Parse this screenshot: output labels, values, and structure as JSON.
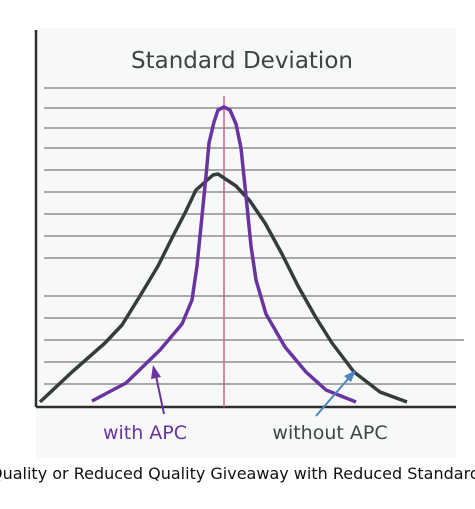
{
  "diagram": {
    "title": "Standard Deviation",
    "label_with": "with APC",
    "label_without": "without APC",
    "caption": "Quality or Reduced Quality Giveaway with Reduced Standard Deviation"
  },
  "colors": {
    "axis": "#2e2e2e",
    "gridline": "#a9a9a9",
    "curve_without": "#333d3d",
    "curve_with": "#6a34a0",
    "mean_line": "#d9608a",
    "label_with": "#6a34a0",
    "label_without": "#3c4848",
    "arrow_with": "#6a34a0",
    "arrow_without": "#4e86c1",
    "panel_bg": "#f7f8f8",
    "title": "#3a4444"
  },
  "curves": [
    {
      "name": "without APC",
      "shape": "wide"
    },
    {
      "name": "with APC",
      "shape": "narrow"
    }
  ]
}
